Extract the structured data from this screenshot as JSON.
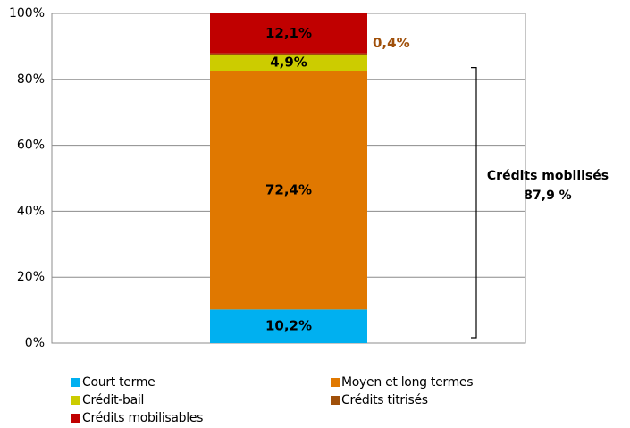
{
  "chart_data": {
    "type": "bar",
    "stacked": true,
    "categories": [
      null
    ],
    "series": [
      {
        "name": "Court terme",
        "color": "#00b0f0",
        "values": [
          10.2
        ],
        "value_labels": [
          "10,2%"
        ]
      },
      {
        "name": "Moyen et long termes",
        "color": "#e07800",
        "values": [
          72.4
        ],
        "value_labels": [
          "72,4%"
        ]
      },
      {
        "name": "Crédit-bail",
        "color": "#cccc00",
        "values": [
          4.9
        ],
        "value_labels": [
          "4,9%"
        ]
      },
      {
        "name": "Crédits titrisés",
        "color": "#a0500a",
        "values": [
          0.4
        ],
        "value_labels": [
          "0,4%"
        ]
      },
      {
        "name": "Crédits mobilisables",
        "color": "#c00000",
        "values": [
          12.1
        ],
        "value_labels": [
          "12,1%"
        ]
      }
    ],
    "ylim": [
      0,
      100
    ],
    "yticks": [
      {
        "value": 0,
        "label": "0%"
      },
      {
        "value": 20,
        "label": "20%"
      },
      {
        "value": 40,
        "label": "40%"
      },
      {
        "value": 60,
        "label": "60%"
      },
      {
        "value": 80,
        "label": "80%"
      },
      {
        "value": 100,
        "label": "100%"
      }
    ],
    "grid": true,
    "annotations": [
      "Crédits mobilisés",
      "87,9 %"
    ]
  }
}
